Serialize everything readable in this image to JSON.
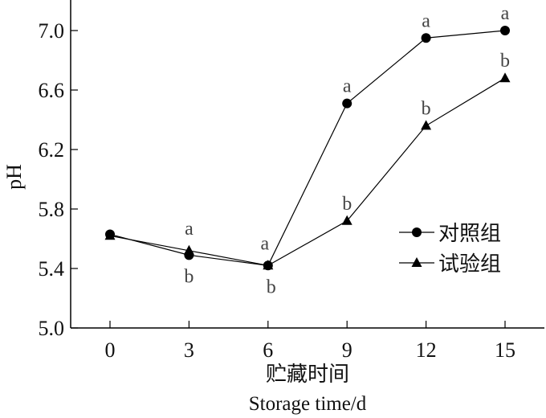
{
  "chart_data": {
    "type": "line",
    "title": "",
    "ylabel": "pH",
    "xlabel_cn": "贮藏时间",
    "xlabel": "Storage time/d",
    "x": [
      0,
      3,
      6,
      9,
      12,
      15
    ],
    "xticks": [
      "0",
      "3",
      "6",
      "9",
      "12",
      "15"
    ],
    "xlim": [
      -1.5,
      16.5
    ],
    "ylim": [
      5.0,
      7.2
    ],
    "yticks": [
      "5.0",
      "5.4",
      "5.8",
      "6.2",
      "6.6",
      "7.0"
    ],
    "legend_position": "right",
    "series": [
      {
        "name": "对照组",
        "marker": "circle",
        "values": [
          5.63,
          5.49,
          5.42,
          6.51,
          6.95,
          7.0
        ],
        "labels": [
          "",
          "b",
          "b",
          "a",
          "a",
          "a"
        ]
      },
      {
        "name": "试验组",
        "marker": "triangle",
        "values": [
          5.62,
          5.52,
          5.42,
          5.72,
          6.36,
          6.68
        ],
        "labels": [
          "",
          "a",
          "a",
          "b",
          "b",
          "b"
        ]
      }
    ],
    "colors": {
      "line": "#000000",
      "label": "#444444"
    }
  }
}
